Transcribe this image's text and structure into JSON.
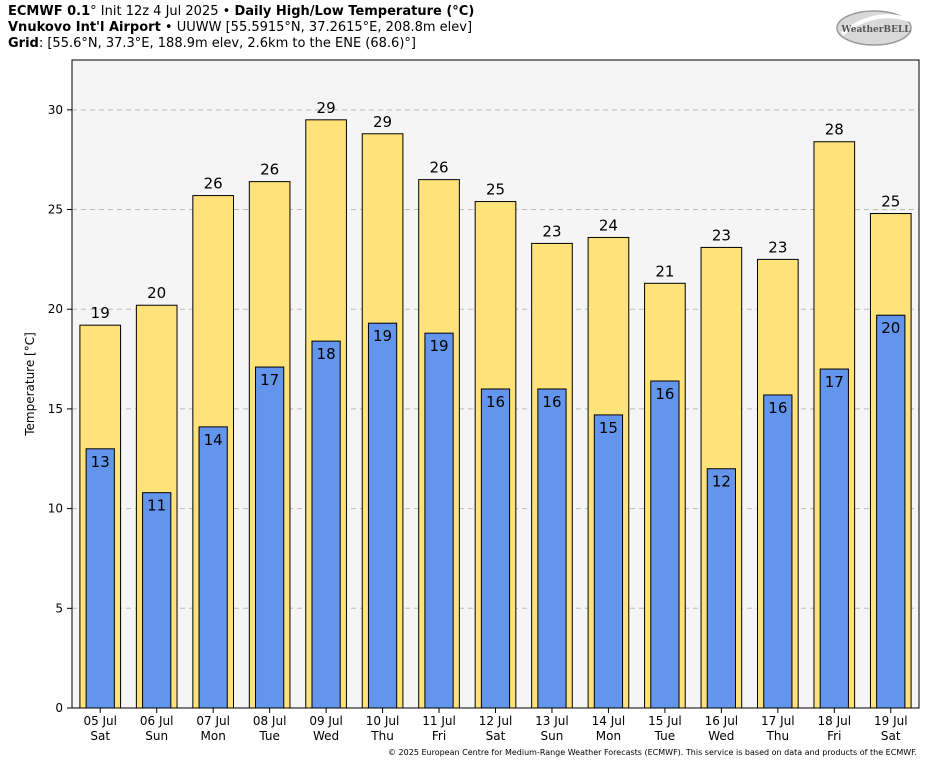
{
  "header": {
    "line1_model": "ECMWF 0.1",
    "line1_init": "° Init 12z 4 Jul 2025 • ",
    "line1_title": "Daily High/Low Temperature (°C)",
    "line2_station": "Vnukovo Int'l Airport",
    "line2_rest": " • UUWW [55.5915°N, 37.2615°E, 208.8m elev]",
    "line3_label": "Grid",
    "line3_rest": ": [55.6°N, 37.3°E, 188.9m elev, 2.6km to the ENE (68.6)°]"
  },
  "logo": {
    "text": "WeatherBELL"
  },
  "footer": "© 2025 European Centre for Medium-Range Weather Forecasts (ECMWF). This service is based on data and products of the ECMWF.",
  "colors": {
    "high": "#ffe27a",
    "low": "#6495ed",
    "plot_bg": "#f5f5f5",
    "grid": "#bbbbbb"
  },
  "chart_data": {
    "type": "bar",
    "ylabel": "Temperature [°C]",
    "ylim": [
      0,
      32.5
    ],
    "yticks": [
      0,
      5,
      10,
      15,
      20,
      25,
      30
    ],
    "grid": true,
    "categories": [
      {
        "date": "05 Jul",
        "day": "Sat"
      },
      {
        "date": "06 Jul",
        "day": "Sun"
      },
      {
        "date": "07 Jul",
        "day": "Mon"
      },
      {
        "date": "08 Jul",
        "day": "Tue"
      },
      {
        "date": "09 Jul",
        "day": "Wed"
      },
      {
        "date": "10 Jul",
        "day": "Thu"
      },
      {
        "date": "11 Jul",
        "day": "Fri"
      },
      {
        "date": "12 Jul",
        "day": "Sat"
      },
      {
        "date": "13 Jul",
        "day": "Sun"
      },
      {
        "date": "14 Jul",
        "day": "Mon"
      },
      {
        "date": "15 Jul",
        "day": "Tue"
      },
      {
        "date": "16 Jul",
        "day": "Wed"
      },
      {
        "date": "17 Jul",
        "day": "Thu"
      },
      {
        "date": "18 Jul",
        "day": "Fri"
      },
      {
        "date": "19 Jul",
        "day": "Sat"
      }
    ],
    "series": [
      {
        "key": "high",
        "values": [
          19.2,
          20.2,
          25.7,
          26.4,
          29.5,
          28.8,
          26.5,
          25.4,
          23.3,
          23.6,
          21.3,
          23.1,
          22.5,
          28.4,
          24.8
        ],
        "labels": [
          "19",
          "20",
          "26",
          "26",
          "29",
          "29",
          "26",
          "25",
          "23",
          "24",
          "21",
          "23",
          "23",
          "28",
          "25"
        ]
      },
      {
        "key": "low",
        "values": [
          13.0,
          10.8,
          14.1,
          17.1,
          18.4,
          19.3,
          18.8,
          16.0,
          16.0,
          14.7,
          16.4,
          12.0,
          15.7,
          17.0,
          19.7
        ],
        "labels": [
          "13",
          "11",
          "14",
          "17",
          "18",
          "19",
          "19",
          "16",
          "16",
          "15",
          "16",
          "12",
          "16",
          "17",
          "20"
        ]
      }
    ]
  }
}
